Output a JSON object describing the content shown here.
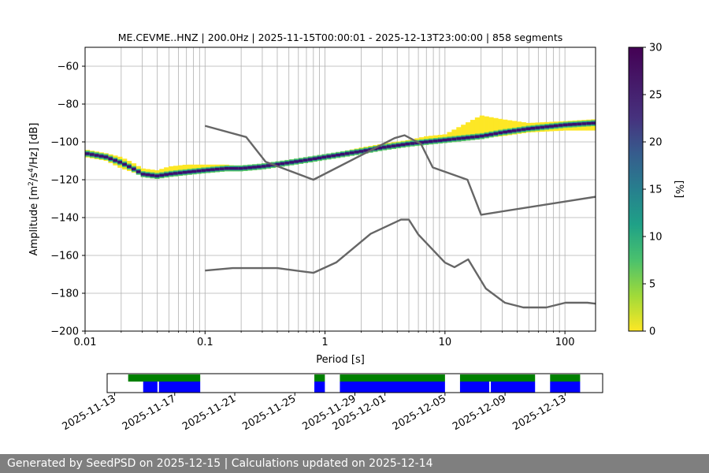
{
  "chart_data": [
    {
      "type": "heatmap",
      "title": "ME.CEVME..HNZ | 200.0Hz | 2025-11-15T00:00:01 - 2025-12-13T23:00:00 | 858 segments",
      "xlabel": "Period [s]",
      "ylabel_prefix": "Amplitude [m",
      "ylabel_mid": "/s",
      "ylabel_suffix": "/Hz] [dB]",
      "ylabel_exp1": "2",
      "ylabel_exp2": "4",
      "x_scale": "log",
      "xlim": [
        0.01,
        180
      ],
      "ylim": [
        -200,
        -50
      ],
      "x_ticks": [
        0.01,
        0.1,
        1,
        10,
        100
      ],
      "x_tick_labels": [
        "0.01",
        "0.1",
        "1",
        "10",
        "100"
      ],
      "y_ticks": [
        -200,
        -180,
        -160,
        -140,
        -120,
        -100,
        -80,
        -60
      ],
      "y_tick_labels": [
        "−200",
        "−180",
        "−160",
        "−140",
        "−120",
        "−100",
        "−80",
        "−60"
      ],
      "grid": true,
      "psd_mode_curve": {
        "period": [
          0.01,
          0.015,
          0.02,
          0.025,
          0.03,
          0.04,
          0.05,
          0.07,
          0.1,
          0.15,
          0.2,
          0.3,
          0.5,
          0.8,
          1,
          2,
          3,
          5,
          7,
          10,
          20,
          30,
          50,
          100,
          180
        ],
        "db": [
          -106,
          -108,
          -111,
          -114,
          -117,
          -118,
          -117,
          -116,
          -115,
          -114,
          -114,
          -113,
          -111,
          -109,
          -108,
          -105,
          -103,
          -101,
          -100,
          -99,
          -97,
          -95,
          -93,
          -91,
          -90
        ]
      },
      "psd_spread_upper": [
        -104,
        -106,
        -108,
        -111,
        -114,
        -115,
        -113,
        -112,
        -112,
        -112,
        -113,
        -112,
        -110,
        -108,
        -107,
        -103,
        -101,
        -99,
        -97,
        -96,
        -86,
        -88,
        -90,
        -89,
        -88
      ],
      "psd_spread_lower": [
        -108,
        -110,
        -114,
        -116,
        -118,
        -118,
        -117,
        -116,
        -115,
        -115,
        -114,
        -113,
        -112,
        -110,
        -109,
        -106,
        -104,
        -102,
        -101,
        -100,
        -98,
        -97,
        -95,
        -94,
        -94
      ],
      "nhnm": {
        "name": "NHNM",
        "period": [
          0.1,
          0.22,
          0.32,
          0.8,
          3.8,
          4.6,
          6.3,
          7.9,
          15.4,
          20,
          180
        ],
        "db": [
          -91.5,
          -97.4,
          -110.5,
          -120,
          -98,
          -96.5,
          -101,
          -113.5,
          -120,
          -138.5,
          -129
        ]
      },
      "nlnm": {
        "name": "NLNM",
        "period": [
          0.1,
          0.17,
          0.4,
          0.8,
          1.24,
          2.4,
          4.3,
          5,
          6,
          10,
          12,
          15.6,
          21.9,
          31.6,
          45,
          70,
          101,
          154,
          180
        ],
        "db": [
          -168,
          -166.7,
          -166.7,
          -169.2,
          -163.7,
          -148.6,
          -141.1,
          -141.1,
          -149,
          -163.8,
          -166.2,
          -162.1,
          -177.5,
          -185,
          -187.5,
          -187.5,
          -185,
          -185,
          -185.5
        ]
      },
      "colorbar": {
        "label": "[%]",
        "min": 0,
        "max": 30,
        "ticks": [
          0,
          5,
          10,
          15,
          20,
          25,
          30
        ],
        "tick_labels": [
          "0",
          "5",
          "10",
          "15",
          "20",
          "25",
          "30"
        ]
      }
    },
    {
      "type": "timeline",
      "tick_labels": [
        "2025-11-13",
        "2025-11-17",
        "2025-11-21",
        "2025-11-25",
        "2025-11-29",
        "2025-12-01",
        "2025-12-05",
        "2025-12-09",
        "2025-12-13"
      ],
      "tick_days": [
        0,
        4,
        8,
        12,
        16,
        18,
        22,
        26,
        30
      ],
      "xlim_days": [
        -0.5,
        32.5
      ],
      "data_available": [
        [
          0.9,
          5.7
        ],
        [
          13.3,
          14.0
        ],
        [
          15.0,
          22.0
        ],
        [
          23.0,
          28.0
        ],
        [
          29.0,
          31.0
        ]
      ],
      "psd_computed": [
        [
          1.9,
          2.85
        ],
        [
          2.95,
          5.7
        ],
        [
          13.3,
          14.0
        ],
        [
          15.0,
          22.0
        ],
        [
          23.0,
          24.95
        ],
        [
          25.05,
          28.0
        ],
        [
          29.0,
          31.0
        ]
      ],
      "colors": {
        "data": "#008000",
        "psd": "#0000ff"
      }
    }
  ],
  "footer": "Generated by SeedPSD on 2025-12-15 | Calculations updated on 2025-12-14"
}
